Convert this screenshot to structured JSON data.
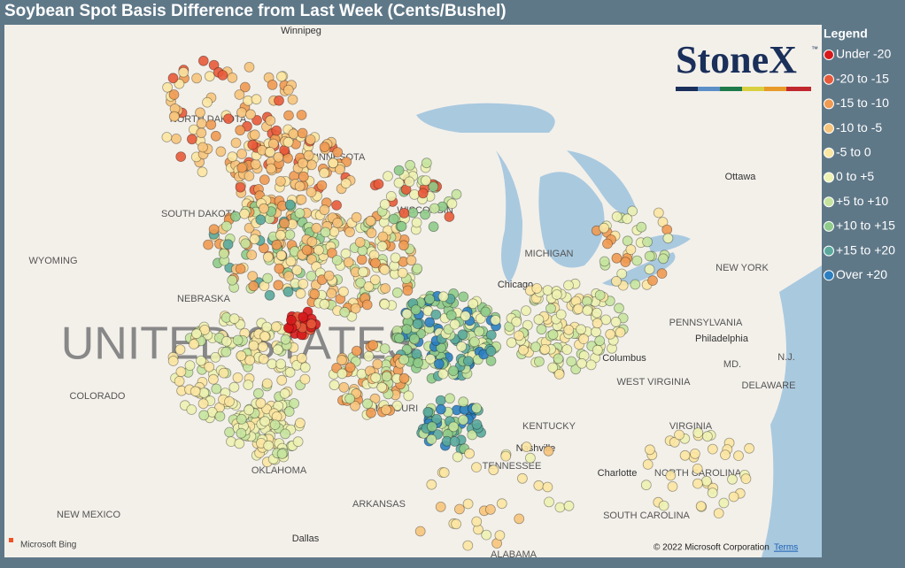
{
  "header": {
    "title": "Soybean Spot Basis Difference from Last Week (Cents/Bushel)"
  },
  "legend": {
    "title": "Legend",
    "items": [
      {
        "label": "Under -20",
        "color": "#d7191c"
      },
      {
        "label": "-20 to -15",
        "color": "#e85a3a"
      },
      {
        "label": "-15 to -10",
        "color": "#f09a52"
      },
      {
        "label": "-10 to -5",
        "color": "#f7c47c"
      },
      {
        "label": "-5 to 0",
        "color": "#fbe6a2"
      },
      {
        "label": "0 to +5",
        "color": "#eef2b2"
      },
      {
        "label": "+5 to +10",
        "color": "#c6e49e"
      },
      {
        "label": "+10 to +15",
        "color": "#8fcb8a"
      },
      {
        "label": "+15 to +20",
        "color": "#5aa99c"
      },
      {
        "label": "Over +20",
        "color": "#2b7fc0"
      }
    ]
  },
  "logo": {
    "text": "StoneX",
    "mark": "™"
  },
  "map": {
    "labels": [
      "Winnipeg",
      "NORTH DAKOTA",
      "MINNESOTA",
      "SOUTH DAKOTA",
      "WISCONSIN",
      "WYOMING",
      "MICHIGAN",
      "NEW YORK",
      "NEBRASKA",
      "Chicago",
      "PENNSYLVANIA",
      "Ottawa",
      "Philadelphia",
      "Columbus",
      "COLORADO",
      "MISSOURI",
      "WEST VIRGINIA",
      "DELAWARE",
      "MD.",
      "N.J.",
      "KENTUCKY",
      "VIRGINIA",
      "Nashville",
      "TENNESSEE",
      "OKLAHOMA",
      "NORTH CAROLINA",
      "Charlotte",
      "NEW MEXICO",
      "ARKANSAS",
      "SOUTH CAROLINA",
      "Dallas",
      "ALABAMA"
    ],
    "country": "UNITED STATES"
  },
  "attribution": {
    "provider": "Microsoft Bing",
    "copyright": "© 2022 Microsoft Corporation",
    "terms": "Terms"
  }
}
